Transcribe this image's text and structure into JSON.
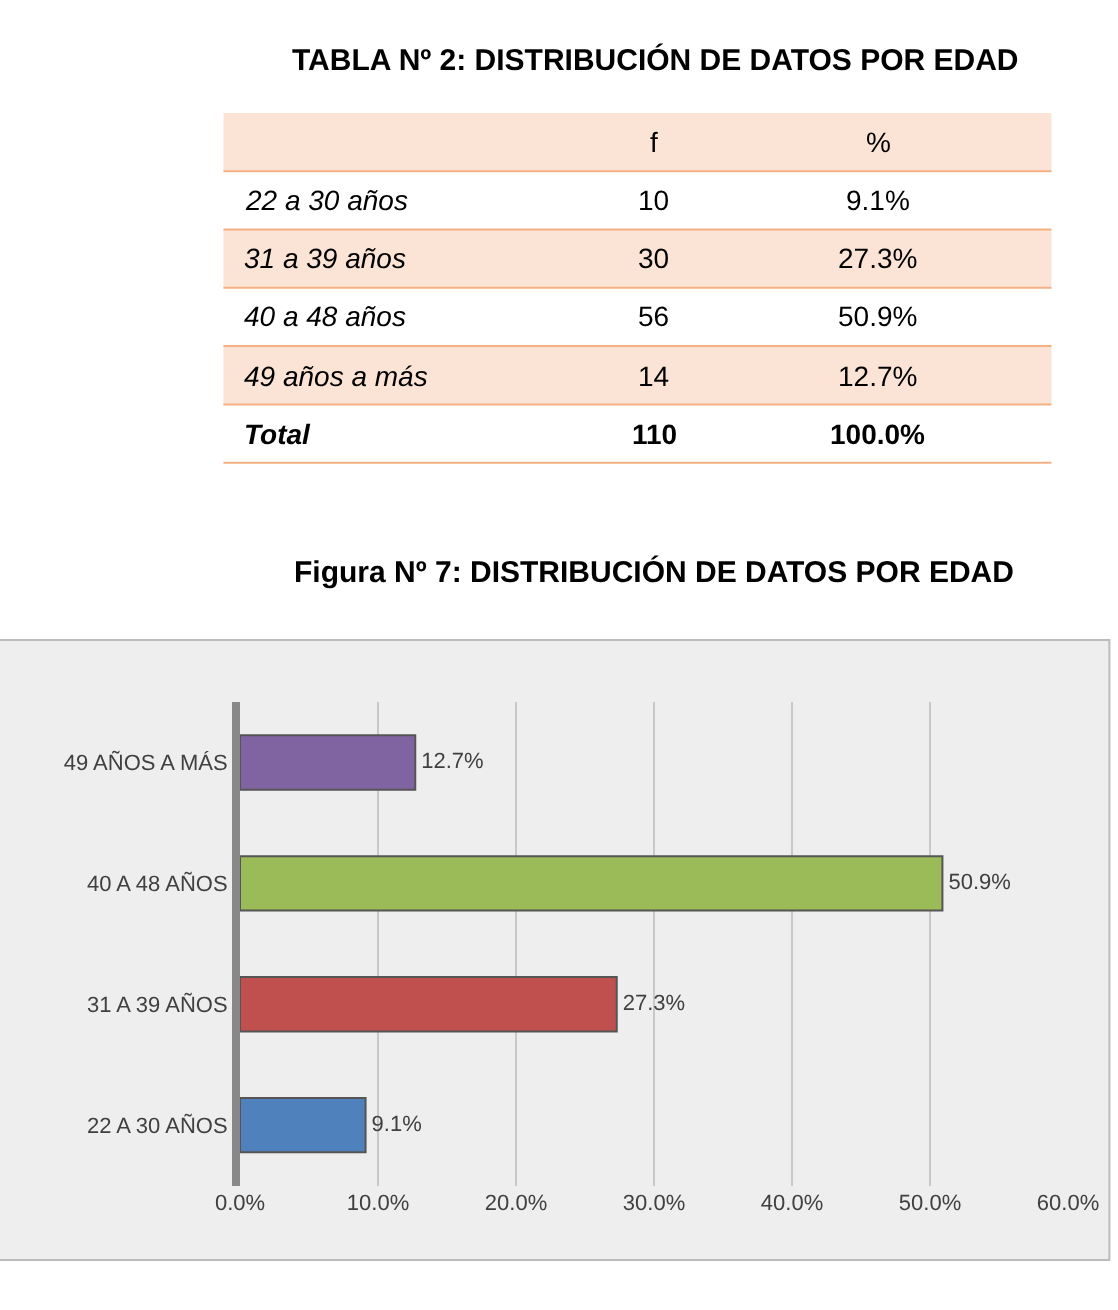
{
  "chart_data": [
    {
      "type": "other",
      "title": "TABLA Nº 2: DISTRIBUCIÓN DE DATOS POR EDAD",
      "annotations": [
        "f",
        "%",
        "22 a 30 años",
        "10",
        "9.1%",
        "31 a 39 años",
        "30",
        "27.3%",
        "40 a 48 años",
        "56",
        "50.9%",
        "49 años a más",
        "14",
        "12.7%",
        "Total",
        "110",
        "100.0%"
      ]
    },
    {
      "type": "bar",
      "title": "Figura Nº 7: DISTRIBUCIÓN DE DATOS POR EDAD",
      "orientation": "horizontal",
      "categories": [
        "49 AÑOS A MÁS",
        "40 A 48 AÑOS",
        "31 A 39 AÑOS",
        "22 A 30 AÑOS"
      ],
      "values": [
        12.7,
        50.9,
        27.3,
        9.1
      ],
      "colors": [
        "#8064a2",
        "#9bbb59",
        "#c0504d",
        "#4f81bd"
      ],
      "value_labels": [
        "12.7%",
        "50.9%",
        "27.3%",
        "9.1%"
      ],
      "xlim": [
        0,
        60
      ],
      "xticks": [
        {
          "value": 0,
          "label": "0.0%"
        },
        {
          "value": 10,
          "label": "10.0%"
        },
        {
          "value": 20,
          "label": "20.0%"
        },
        {
          "value": 30,
          "label": "30.0%"
        },
        {
          "value": 40,
          "label": "40.0%"
        },
        {
          "value": 50,
          "label": "50.0%"
        },
        {
          "value": 60,
          "label": "60.0%"
        }
      ],
      "grid": "x"
    }
  ]
}
